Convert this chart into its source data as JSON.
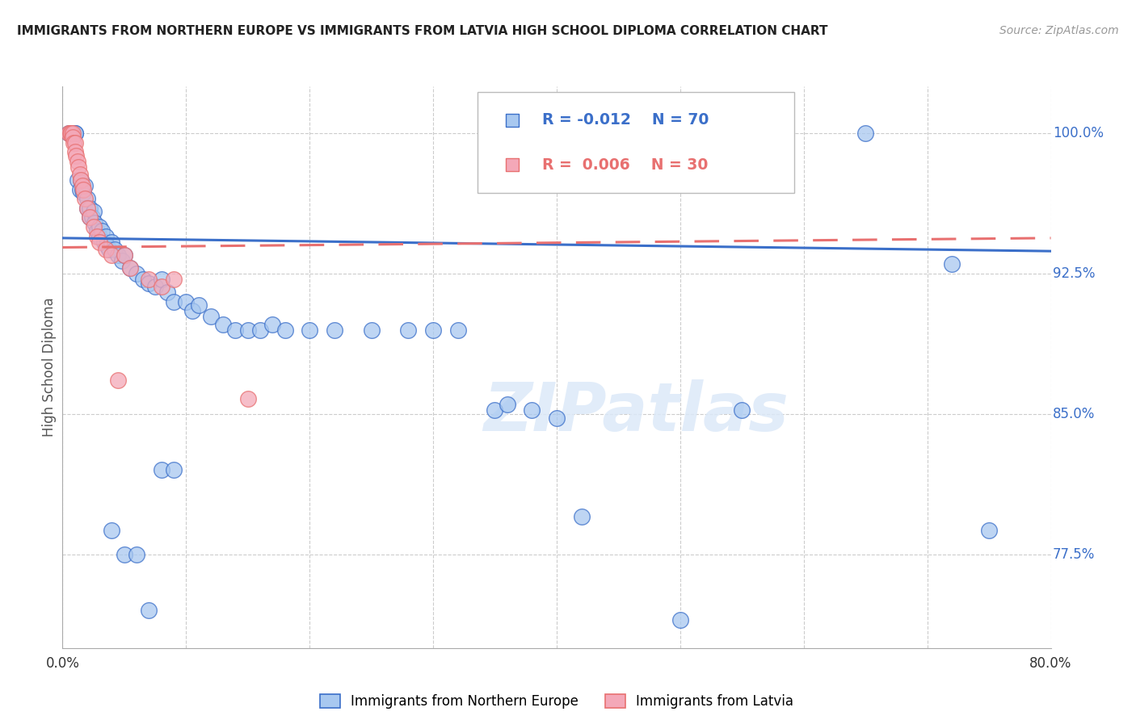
{
  "title": "IMMIGRANTS FROM NORTHERN EUROPE VS IMMIGRANTS FROM LATVIA HIGH SCHOOL DIPLOMA CORRELATION CHART",
  "source": "Source: ZipAtlas.com",
  "ylabel": "High School Diploma",
  "legend_bottom": [
    "Immigrants from Northern Europe",
    "Immigrants from Latvia"
  ],
  "xlim": [
    0.0,
    0.8
  ],
  "ylim": [
    0.725,
    1.025
  ],
  "color_blue": "#A8C8F0",
  "color_pink": "#F4A8B8",
  "color_blue_line": "#3B6FC9",
  "color_pink_line": "#E87070",
  "color_grid": "#CCCCCC",
  "watermark": "ZIPatlas",
  "blue_trend_x": [
    0.0,
    0.8
  ],
  "blue_trend_y": [
    0.944,
    0.937
  ],
  "pink_trend_x": [
    0.0,
    0.8
  ],
  "pink_trend_y": [
    0.939,
    0.944
  ],
  "blue_x": [
    0.005,
    0.008,
    0.01,
    0.01,
    0.012,
    0.014,
    0.015,
    0.016,
    0.017,
    0.018,
    0.02,
    0.02,
    0.022,
    0.022,
    0.024,
    0.025,
    0.026,
    0.028,
    0.03,
    0.03,
    0.032,
    0.034,
    0.035,
    0.036,
    0.038,
    0.04,
    0.042,
    0.045,
    0.048,
    0.05,
    0.055,
    0.06,
    0.065,
    0.07,
    0.075,
    0.08,
    0.085,
    0.09,
    0.1,
    0.105,
    0.11,
    0.12,
    0.13,
    0.14,
    0.15,
    0.16,
    0.17,
    0.18,
    0.2,
    0.22,
    0.25,
    0.28,
    0.3,
    0.32,
    0.35,
    0.36,
    0.38,
    0.4,
    0.42,
    0.5,
    0.55,
    0.65,
    0.72,
    0.75,
    0.04,
    0.05,
    0.06,
    0.07,
    0.08,
    0.09
  ],
  "blue_y": [
    1.0,
    1.0,
    1.0,
    1.0,
    0.975,
    0.97,
    0.975,
    0.97,
    0.968,
    0.972,
    0.965,
    0.96,
    0.96,
    0.955,
    0.955,
    0.958,
    0.952,
    0.948,
    0.95,
    0.945,
    0.948,
    0.942,
    0.945,
    0.94,
    0.938,
    0.942,
    0.938,
    0.935,
    0.932,
    0.935,
    0.928,
    0.925,
    0.922,
    0.92,
    0.918,
    0.922,
    0.915,
    0.91,
    0.91,
    0.905,
    0.908,
    0.902,
    0.898,
    0.895,
    0.895,
    0.895,
    0.898,
    0.895,
    0.895,
    0.895,
    0.895,
    0.895,
    0.895,
    0.895,
    0.852,
    0.855,
    0.852,
    0.848,
    0.795,
    0.74,
    0.852,
    1.0,
    0.93,
    0.788,
    0.788,
    0.775,
    0.775,
    0.745,
    0.82,
    0.82
  ],
  "pink_x": [
    0.005,
    0.006,
    0.007,
    0.008,
    0.008,
    0.009,
    0.01,
    0.01,
    0.011,
    0.012,
    0.013,
    0.014,
    0.015,
    0.016,
    0.017,
    0.018,
    0.02,
    0.022,
    0.025,
    0.028,
    0.03,
    0.035,
    0.04,
    0.045,
    0.05,
    0.055,
    0.07,
    0.08,
    0.09,
    0.15
  ],
  "pink_y": [
    1.0,
    1.0,
    1.0,
    1.0,
    0.998,
    0.995,
    0.995,
    0.99,
    0.988,
    0.985,
    0.982,
    0.978,
    0.975,
    0.972,
    0.97,
    0.965,
    0.96,
    0.955,
    0.95,
    0.945,
    0.942,
    0.938,
    0.935,
    0.868,
    0.935,
    0.928,
    0.922,
    0.918,
    0.922,
    0.858
  ]
}
